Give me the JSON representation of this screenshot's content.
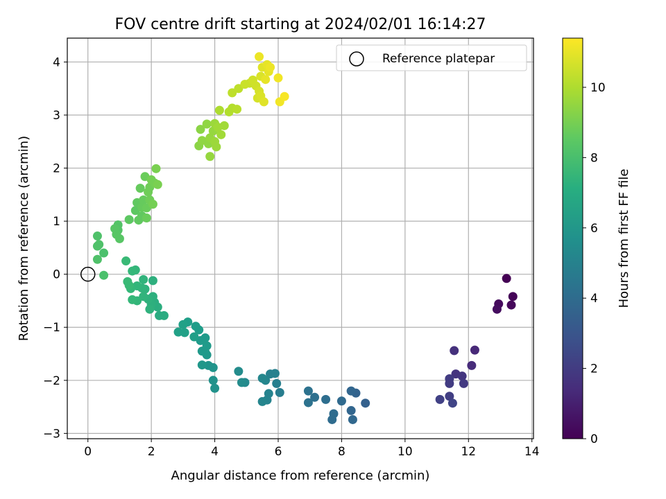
{
  "chart_data": {
    "type": "scatter",
    "title": "FOV centre drift starting at 2024/02/01 16:14:27",
    "xlabel": "Angular distance from reference (arcmin)",
    "ylabel": "Rotation from reference (arcmin)",
    "xlim": [
      -0.65,
      14.05
    ],
    "ylim": [
      -3.1,
      4.45
    ],
    "xticks": [
      0,
      2,
      4,
      6,
      8,
      10,
      12,
      14
    ],
    "yticks": [
      -3,
      -2,
      -1,
      0,
      1,
      2,
      3,
      4
    ],
    "grid": true,
    "legend": {
      "placement": "upper-right",
      "entries": [
        "Reference platepar"
      ]
    },
    "reference_point": {
      "x": 0,
      "y": 0
    },
    "colorbar": {
      "label": "Hours from first FF file",
      "colormap": "viridis",
      "range": [
        0,
        11.4
      ],
      "ticks": [
        0,
        2,
        4,
        6,
        8,
        10
      ]
    },
    "points": [
      {
        "x": 13.2,
        "y": -0.08,
        "h": 0.0
      },
      {
        "x": 13.4,
        "y": -0.42,
        "h": 0.1
      },
      {
        "x": 13.35,
        "y": -0.58,
        "h": 0.2
      },
      {
        "x": 12.95,
        "y": -0.56,
        "h": 0.3
      },
      {
        "x": 12.9,
        "y": -0.66,
        "h": 0.4
      },
      {
        "x": 12.2,
        "y": -1.43,
        "h": 1.3
      },
      {
        "x": 12.1,
        "y": -1.72,
        "h": 1.4
      },
      {
        "x": 11.55,
        "y": -1.44,
        "h": 1.6
      },
      {
        "x": 11.6,
        "y": -1.88,
        "h": 1.7
      },
      {
        "x": 11.8,
        "y": -1.92,
        "h": 1.8
      },
      {
        "x": 11.85,
        "y": -2.06,
        "h": 1.9
      },
      {
        "x": 11.4,
        "y": -1.97,
        "h": 2.0
      },
      {
        "x": 11.4,
        "y": -2.06,
        "h": 2.0
      },
      {
        "x": 11.4,
        "y": -2.3,
        "h": 2.1
      },
      {
        "x": 11.1,
        "y": -2.36,
        "h": 2.2
      },
      {
        "x": 11.5,
        "y": -2.43,
        "h": 2.3
      },
      {
        "x": 8.75,
        "y": -2.43,
        "h": 3.5
      },
      {
        "x": 8.45,
        "y": -2.24,
        "h": 3.6
      },
      {
        "x": 8.3,
        "y": -2.2,
        "h": 3.7
      },
      {
        "x": 8.3,
        "y": -2.57,
        "h": 3.7
      },
      {
        "x": 8.35,
        "y": -2.74,
        "h": 3.8
      },
      {
        "x": 8.0,
        "y": -2.39,
        "h": 3.9
      },
      {
        "x": 7.75,
        "y": -2.63,
        "h": 4.0
      },
      {
        "x": 7.7,
        "y": -2.74,
        "h": 4.0
      },
      {
        "x": 7.5,
        "y": -2.36,
        "h": 4.1
      },
      {
        "x": 7.15,
        "y": -2.32,
        "h": 4.2
      },
      {
        "x": 6.95,
        "y": -2.2,
        "h": 4.3
      },
      {
        "x": 6.95,
        "y": -2.42,
        "h": 4.3
      },
      {
        "x": 6.05,
        "y": -2.23,
        "h": 4.8
      },
      {
        "x": 5.95,
        "y": -2.06,
        "h": 4.9
      },
      {
        "x": 5.9,
        "y": -1.87,
        "h": 5.0
      },
      {
        "x": 5.75,
        "y": -1.88,
        "h": 5.0
      },
      {
        "x": 5.7,
        "y": -2.25,
        "h": 5.1
      },
      {
        "x": 5.65,
        "y": -2.37,
        "h": 5.1
      },
      {
        "x": 5.5,
        "y": -2.4,
        "h": 5.2
      },
      {
        "x": 5.6,
        "y": -2.0,
        "h": 5.2
      },
      {
        "x": 5.5,
        "y": -1.96,
        "h": 5.3
      },
      {
        "x": 4.95,
        "y": -2.04,
        "h": 5.4
      },
      {
        "x": 4.85,
        "y": -2.04,
        "h": 5.5
      },
      {
        "x": 4.75,
        "y": -1.83,
        "h": 5.5
      },
      {
        "x": 4.0,
        "y": -2.15,
        "h": 5.8
      },
      {
        "x": 3.95,
        "y": -2.0,
        "h": 5.8
      },
      {
        "x": 3.95,
        "y": -1.76,
        "h": 5.9
      },
      {
        "x": 3.8,
        "y": -1.72,
        "h": 5.9
      },
      {
        "x": 3.6,
        "y": -1.71,
        "h": 6.0
      },
      {
        "x": 3.75,
        "y": -1.52,
        "h": 6.0
      },
      {
        "x": 3.7,
        "y": -1.47,
        "h": 6.1
      },
      {
        "x": 3.6,
        "y": -1.45,
        "h": 6.1
      },
      {
        "x": 3.55,
        "y": -1.25,
        "h": 6.2
      },
      {
        "x": 3.75,
        "y": -1.35,
        "h": 6.2
      },
      {
        "x": 3.7,
        "y": -1.2,
        "h": 6.2
      },
      {
        "x": 3.5,
        "y": -1.05,
        "h": 6.3
      },
      {
        "x": 3.4,
        "y": -0.98,
        "h": 6.3
      },
      {
        "x": 3.35,
        "y": -1.18,
        "h": 6.4
      },
      {
        "x": 3.15,
        "y": -0.9,
        "h": 6.4
      },
      {
        "x": 3.05,
        "y": -1.1,
        "h": 6.5
      },
      {
        "x": 3.0,
        "y": -0.95,
        "h": 6.5
      },
      {
        "x": 2.85,
        "y": -1.09,
        "h": 6.5
      },
      {
        "x": 2.4,
        "y": -0.78,
        "h": 7.0
      },
      {
        "x": 2.25,
        "y": -0.78,
        "h": 7.0
      },
      {
        "x": 2.2,
        "y": -0.62,
        "h": 7.1
      },
      {
        "x": 2.1,
        "y": -0.53,
        "h": 7.1
      },
      {
        "x": 2.05,
        "y": -0.42,
        "h": 7.2
      },
      {
        "x": 2.05,
        "y": -0.12,
        "h": 7.2
      },
      {
        "x": 2.0,
        "y": -0.57,
        "h": 7.2
      },
      {
        "x": 1.95,
        "y": -0.66,
        "h": 7.3
      },
      {
        "x": 1.9,
        "y": -0.47,
        "h": 7.3
      },
      {
        "x": 1.8,
        "y": -0.28,
        "h": 7.3
      },
      {
        "x": 1.75,
        "y": -0.1,
        "h": 7.4
      },
      {
        "x": 1.75,
        "y": -0.42,
        "h": 7.4
      },
      {
        "x": 1.7,
        "y": -0.26,
        "h": 7.4
      },
      {
        "x": 1.55,
        "y": -0.22,
        "h": 7.5
      },
      {
        "x": 1.55,
        "y": -0.5,
        "h": 7.5
      },
      {
        "x": 1.5,
        "y": 0.08,
        "h": 7.5
      },
      {
        "x": 1.4,
        "y": 0.06,
        "h": 7.6
      },
      {
        "x": 1.35,
        "y": -0.27,
        "h": 7.6
      },
      {
        "x": 1.4,
        "y": -0.48,
        "h": 7.6
      },
      {
        "x": 1.3,
        "y": -0.21,
        "h": 7.7
      },
      {
        "x": 1.25,
        "y": -0.14,
        "h": 7.7
      },
      {
        "x": 1.2,
        "y": 0.25,
        "h": 7.7
      },
      {
        "x": 0.5,
        "y": -0.02,
        "h": 8.1
      },
      {
        "x": 0.5,
        "y": 0.4,
        "h": 8.1
      },
      {
        "x": 0.35,
        "y": 0.56,
        "h": 8.2
      },
      {
        "x": 0.3,
        "y": 0.72,
        "h": 8.2
      },
      {
        "x": 0.3,
        "y": 0.53,
        "h": 8.2
      },
      {
        "x": 0.3,
        "y": 0.28,
        "h": 8.2
      },
      {
        "x": 0.95,
        "y": 0.93,
        "h": 8.3
      },
      {
        "x": 0.95,
        "y": 0.83,
        "h": 8.3
      },
      {
        "x": 1.0,
        "y": 0.67,
        "h": 8.4
      },
      {
        "x": 0.9,
        "y": 0.75,
        "h": 8.4
      },
      {
        "x": 0.85,
        "y": 0.86,
        "h": 8.4
      },
      {
        "x": 1.3,
        "y": 1.03,
        "h": 8.5
      },
      {
        "x": 1.5,
        "y": 1.2,
        "h": 8.5
      },
      {
        "x": 1.6,
        "y": 1.02,
        "h": 8.6
      },
      {
        "x": 1.55,
        "y": 1.35,
        "h": 8.6
      },
      {
        "x": 1.7,
        "y": 1.1,
        "h": 8.6
      },
      {
        "x": 1.65,
        "y": 1.62,
        "h": 8.7
      },
      {
        "x": 1.7,
        "y": 1.26,
        "h": 8.7
      },
      {
        "x": 1.75,
        "y": 1.4,
        "h": 8.7
      },
      {
        "x": 1.8,
        "y": 1.84,
        "h": 8.8
      },
      {
        "x": 1.85,
        "y": 1.06,
        "h": 8.8
      },
      {
        "x": 1.85,
        "y": 1.25,
        "h": 8.8
      },
      {
        "x": 1.9,
        "y": 1.55,
        "h": 8.9
      },
      {
        "x": 1.95,
        "y": 1.4,
        "h": 8.9
      },
      {
        "x": 1.95,
        "y": 1.64,
        "h": 8.9
      },
      {
        "x": 2.0,
        "y": 1.78,
        "h": 9.0
      },
      {
        "x": 2.05,
        "y": 1.32,
        "h": 9.0
      },
      {
        "x": 2.1,
        "y": 1.72,
        "h": 9.0
      },
      {
        "x": 2.15,
        "y": 1.99,
        "h": 9.1
      },
      {
        "x": 2.2,
        "y": 1.69,
        "h": 9.1
      },
      {
        "x": 3.5,
        "y": 2.42,
        "h": 9.4
      },
      {
        "x": 3.55,
        "y": 2.73,
        "h": 9.4
      },
      {
        "x": 3.6,
        "y": 2.52,
        "h": 9.5
      },
      {
        "x": 3.75,
        "y": 2.83,
        "h": 9.5
      },
      {
        "x": 3.8,
        "y": 2.46,
        "h": 9.5
      },
      {
        "x": 3.85,
        "y": 2.57,
        "h": 9.6
      },
      {
        "x": 3.85,
        "y": 2.22,
        "h": 9.6
      },
      {
        "x": 3.95,
        "y": 2.7,
        "h": 9.6
      },
      {
        "x": 4.0,
        "y": 2.84,
        "h": 9.7
      },
      {
        "x": 4.0,
        "y": 2.5,
        "h": 9.7
      },
      {
        "x": 4.05,
        "y": 2.4,
        "h": 9.7
      },
      {
        "x": 4.1,
        "y": 2.77,
        "h": 9.8
      },
      {
        "x": 4.2,
        "y": 2.63,
        "h": 9.8
      },
      {
        "x": 4.3,
        "y": 2.8,
        "h": 9.8
      },
      {
        "x": 4.15,
        "y": 3.09,
        "h": 10.0
      },
      {
        "x": 4.45,
        "y": 3.06,
        "h": 10.1
      },
      {
        "x": 4.55,
        "y": 3.13,
        "h": 10.1
      },
      {
        "x": 4.7,
        "y": 3.11,
        "h": 10.2
      },
      {
        "x": 4.55,
        "y": 3.42,
        "h": 10.3
      },
      {
        "x": 4.75,
        "y": 3.5,
        "h": 10.3
      },
      {
        "x": 4.95,
        "y": 3.58,
        "h": 10.5
      },
      {
        "x": 5.1,
        "y": 3.6,
        "h": 10.5
      },
      {
        "x": 5.2,
        "y": 3.66,
        "h": 10.6
      },
      {
        "x": 5.3,
        "y": 3.55,
        "h": 10.6
      },
      {
        "x": 5.35,
        "y": 3.32,
        "h": 10.7
      },
      {
        "x": 5.4,
        "y": 3.45,
        "h": 10.7
      },
      {
        "x": 5.45,
        "y": 3.73,
        "h": 10.8
      },
      {
        "x": 5.45,
        "y": 3.36,
        "h": 10.8
      },
      {
        "x": 5.5,
        "y": 3.9,
        "h": 10.9
      },
      {
        "x": 5.55,
        "y": 3.25,
        "h": 10.9
      },
      {
        "x": 5.6,
        "y": 3.67,
        "h": 11.0
      },
      {
        "x": 5.65,
        "y": 3.95,
        "h": 11.0
      },
      {
        "x": 5.7,
        "y": 3.82,
        "h": 11.0
      },
      {
        "x": 5.75,
        "y": 3.9,
        "h": 11.1
      },
      {
        "x": 5.4,
        "y": 4.1,
        "h": 11.1
      },
      {
        "x": 6.0,
        "y": 3.7,
        "h": 11.2
      },
      {
        "x": 6.05,
        "y": 3.25,
        "h": 11.2
      },
      {
        "x": 6.2,
        "y": 3.35,
        "h": 11.3
      }
    ]
  }
}
